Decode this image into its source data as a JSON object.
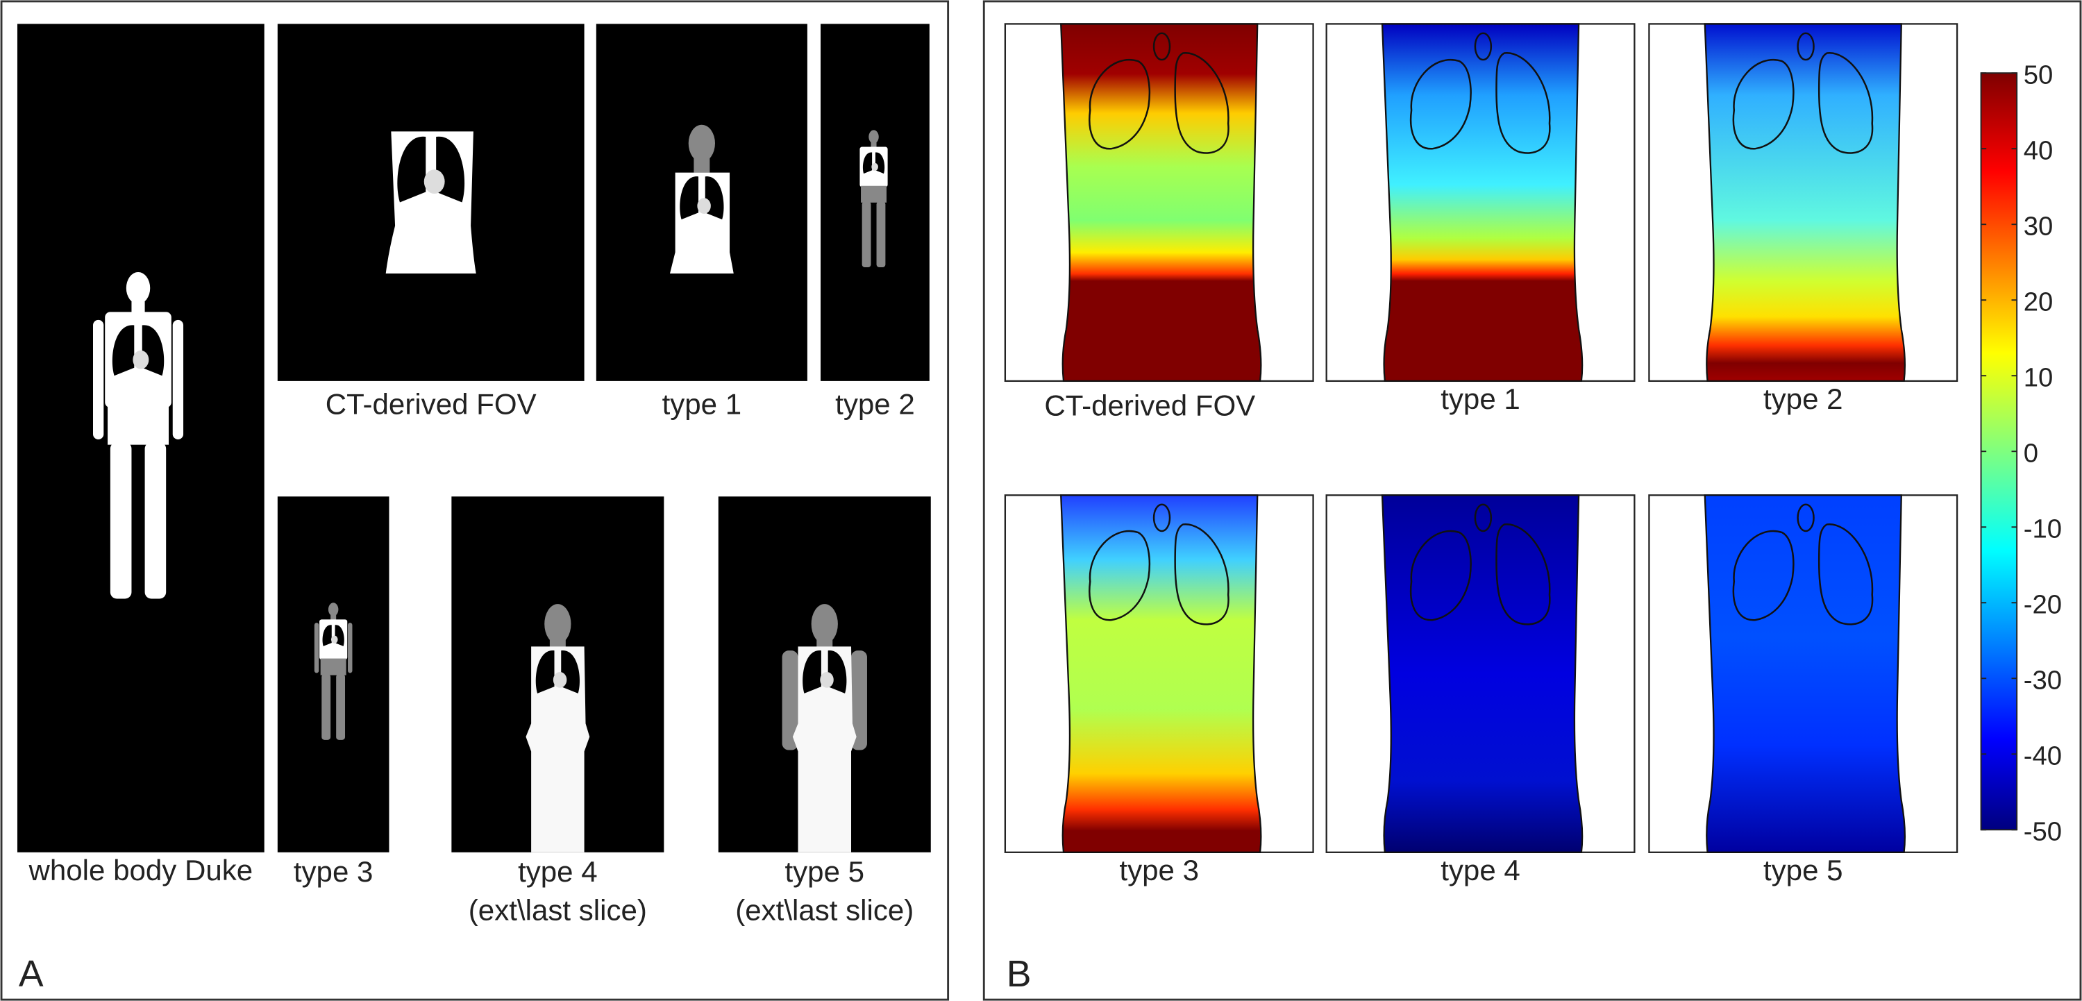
{
  "panel_a": {
    "label": "A",
    "images": [
      {
        "caption": [
          "whole body Duke"
        ]
      },
      {
        "caption": [
          "CT-derived FOV"
        ]
      },
      {
        "caption": [
          "type 1"
        ]
      },
      {
        "caption": [
          "type 2"
        ]
      },
      {
        "caption": [
          "type 3"
        ]
      },
      {
        "caption": [
          "type 4",
          "(ext\\last slice)"
        ]
      },
      {
        "caption": [
          "type 5",
          "(ext\\last slice)"
        ]
      }
    ]
  },
  "panel_b": {
    "label": "B",
    "maps": [
      {
        "caption": "CT-derived FOV"
      },
      {
        "caption": "type 1"
      },
      {
        "caption": "type 2"
      },
      {
        "caption": "type 3"
      },
      {
        "caption": "type 4"
      },
      {
        "caption": "type 5"
      }
    ],
    "colorbar": {
      "lim": [
        -50,
        50
      ],
      "ticks": [
        50,
        40,
        30,
        20,
        10,
        0,
        -10,
        -20,
        -30,
        -40,
        -50
      ]
    }
  }
}
